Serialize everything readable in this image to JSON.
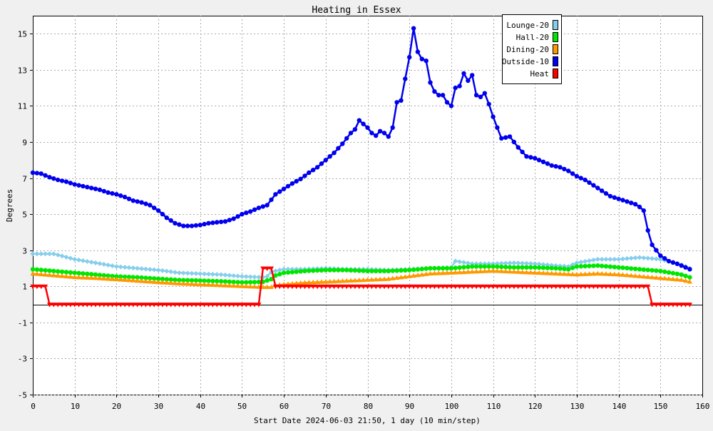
{
  "chart_data": {
    "type": "line",
    "title": "Heating in Essex",
    "xlabel": "Start Date 2024-06-03 21:50, 1 day (10 min/step)",
    "ylabel": "Degrees",
    "xlim": [
      0,
      160
    ],
    "ylim": [
      -5,
      16
    ],
    "xticks": [
      0,
      10,
      20,
      30,
      40,
      50,
      60,
      70,
      80,
      90,
      100,
      110,
      120,
      130,
      140,
      150,
      160
    ],
    "yticks": [
      -5,
      -3,
      -1,
      1,
      3,
      5,
      7,
      9,
      11,
      13,
      15
    ],
    "grid": true,
    "legend_position": "top-right",
    "series": [
      {
        "name": "Lounge-20",
        "color": "#87ceeb",
        "marker": "diamond",
        "x": [
          0,
          5,
          10,
          15,
          20,
          25,
          30,
          35,
          40,
          45,
          50,
          55,
          56,
          57,
          58,
          60,
          65,
          70,
          75,
          80,
          85,
          90,
          95,
          100,
          101,
          105,
          110,
          115,
          120,
          125,
          128,
          130,
          135,
          140,
          145,
          150,
          155,
          157
        ],
        "y": [
          2.8,
          2.8,
          2.5,
          2.3,
          2.1,
          2.0,
          1.9,
          1.75,
          1.7,
          1.65,
          1.55,
          1.5,
          1.55,
          1.8,
          1.85,
          1.95,
          1.95,
          2.0,
          1.95,
          1.95,
          1.9,
          1.95,
          2.0,
          2.05,
          2.4,
          2.25,
          2.25,
          2.3,
          2.25,
          2.15,
          2.1,
          2.3,
          2.5,
          2.5,
          2.6,
          2.5,
          2.2,
          2.0
        ]
      },
      {
        "name": "Hall-20",
        "color": "#00e600",
        "marker": "circle",
        "x": [
          0,
          5,
          10,
          15,
          20,
          25,
          30,
          35,
          40,
          45,
          50,
          55,
          57,
          58,
          60,
          65,
          70,
          75,
          80,
          85,
          90,
          95,
          100,
          105,
          110,
          115,
          120,
          125,
          128,
          130,
          135,
          140,
          145,
          150,
          155,
          157
        ],
        "y": [
          1.95,
          1.85,
          1.75,
          1.65,
          1.55,
          1.5,
          1.42,
          1.35,
          1.32,
          1.28,
          1.22,
          1.25,
          1.4,
          1.6,
          1.75,
          1.85,
          1.9,
          1.9,
          1.85,
          1.85,
          1.9,
          2.0,
          2.0,
          2.1,
          2.1,
          2.05,
          2.05,
          2.0,
          1.95,
          2.1,
          2.15,
          2.05,
          1.95,
          1.85,
          1.65,
          1.5
        ]
      },
      {
        "name": "Dining-20",
        "color": "#ff9900",
        "marker": "triangle",
        "x": [
          0,
          5,
          10,
          15,
          20,
          25,
          30,
          35,
          40,
          45,
          50,
          55,
          57,
          58,
          60,
          65,
          70,
          75,
          80,
          85,
          90,
          95,
          100,
          105,
          110,
          115,
          120,
          125,
          130,
          135,
          140,
          145,
          150,
          155,
          157
        ],
        "y": [
          1.7,
          1.6,
          1.5,
          1.45,
          1.38,
          1.3,
          1.22,
          1.15,
          1.1,
          1.05,
          1.0,
          0.95,
          0.95,
          1.05,
          1.1,
          1.2,
          1.25,
          1.3,
          1.35,
          1.4,
          1.55,
          1.7,
          1.75,
          1.8,
          1.85,
          1.8,
          1.75,
          1.7,
          1.65,
          1.7,
          1.65,
          1.55,
          1.45,
          1.35,
          1.25
        ]
      },
      {
        "name": "Outside-10",
        "color": "#0000ee",
        "marker": "circle",
        "x": [
          0,
          2,
          4,
          6,
          8,
          10,
          12,
          14,
          16,
          18,
          20,
          22,
          24,
          26,
          28,
          30,
          32,
          34,
          36,
          38,
          40,
          42,
          44,
          46,
          48,
          50,
          52,
          54,
          56,
          57,
          58,
          60,
          62,
          64,
          66,
          68,
          70,
          72,
          74,
          76,
          77,
          78,
          79,
          80,
          81,
          82,
          83,
          84,
          85,
          86,
          87,
          88,
          89,
          90,
          91,
          92,
          93,
          94,
          95,
          96,
          97,
          98,
          99,
          100,
          101,
          102,
          103,
          104,
          105,
          106,
          107,
          108,
          109,
          110,
          112,
          114,
          116,
          118,
          120,
          122,
          124,
          126,
          128,
          130,
          132,
          134,
          136,
          138,
          140,
          142,
          144,
          145,
          146,
          147,
          148,
          150,
          152,
          154,
          156,
          157
        ],
        "y": [
          7.3,
          7.25,
          7.05,
          6.9,
          6.8,
          6.65,
          6.55,
          6.45,
          6.35,
          6.2,
          6.1,
          5.95,
          5.75,
          5.65,
          5.5,
          5.2,
          4.8,
          4.5,
          4.35,
          4.35,
          4.4,
          4.5,
          4.55,
          4.6,
          4.75,
          5.0,
          5.15,
          5.35,
          5.5,
          5.8,
          6.1,
          6.4,
          6.7,
          6.95,
          7.3,
          7.6,
          8.0,
          8.4,
          8.9,
          9.5,
          9.7,
          10.2,
          10.0,
          9.8,
          9.5,
          9.35,
          9.6,
          9.5,
          9.3,
          9.8,
          11.2,
          11.3,
          12.5,
          13.7,
          15.3,
          14.0,
          13.6,
          13.5,
          12.3,
          11.8,
          11.6,
          11.6,
          11.2,
          11.0,
          12.0,
          12.1,
          12.8,
          12.4,
          12.7,
          11.6,
          11.5,
          11.7,
          11.1,
          10.4,
          9.2,
          9.3,
          8.7,
          8.2,
          8.1,
          7.9,
          7.7,
          7.6,
          7.4,
          7.1,
          6.9,
          6.6,
          6.3,
          6.0,
          5.85,
          5.7,
          5.55,
          5.4,
          5.2,
          4.1,
          3.3,
          2.7,
          2.4,
          2.25,
          2.05,
          1.95
        ]
      },
      {
        "name": "Heat",
        "color": "#ff0000",
        "marker": "triangle-down",
        "x": [
          0,
          3,
          4,
          10,
          20,
          30,
          40,
          50,
          54,
          55,
          56,
          57,
          58,
          60,
          70,
          80,
          90,
          100,
          110,
          120,
          130,
          140,
          147,
          148,
          150,
          155,
          157
        ],
        "y": [
          1.0,
          1.0,
          0.0,
          0.0,
          0.0,
          0.0,
          0.0,
          0.0,
          0.0,
          2.0,
          2.0,
          2.0,
          1.0,
          1.0,
          1.0,
          1.0,
          1.0,
          1.0,
          1.0,
          1.0,
          1.0,
          1.0,
          1.0,
          0.0,
          0.0,
          0.0,
          0.0
        ]
      }
    ]
  }
}
